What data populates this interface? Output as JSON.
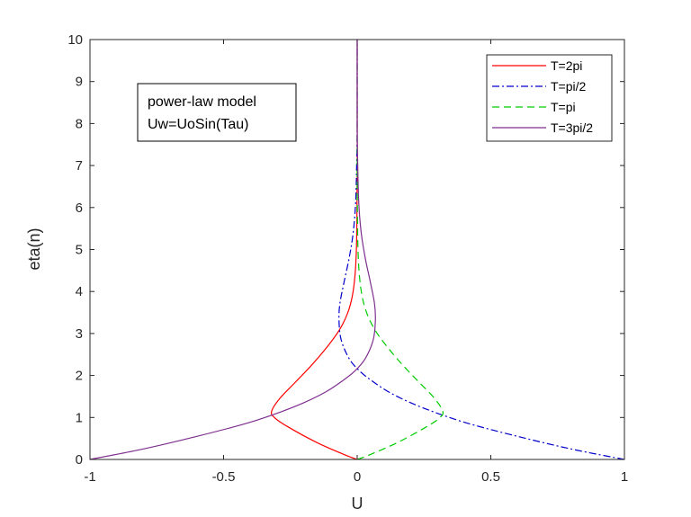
{
  "chart_data": {
    "type": "line",
    "xlabel": "U",
    "ylabel": "eta(n)",
    "xlim": [
      -1,
      1
    ],
    "ylim": [
      0,
      10
    ],
    "x_ticks": [
      "-1",
      "-0.5",
      "0",
      "0.5",
      "1"
    ],
    "y_ticks": [
      "0",
      "1",
      "2",
      "3",
      "4",
      "5",
      "6",
      "7",
      "8",
      "9",
      "10"
    ],
    "annotation": [
      "power-law model",
      "Uw=UoSin(Tau)"
    ],
    "legend_position": "top-right",
    "series": [
      {
        "name": "T=2pi",
        "color": "#ff0000",
        "dash": "solid",
        "x": [
          0,
          -0.05,
          -0.15,
          -0.26,
          -0.31,
          -0.32,
          -0.29,
          -0.23,
          -0.17,
          -0.11,
          -0.065,
          -0.035,
          -0.018,
          -0.008,
          -0.003,
          -0.001,
          0,
          0
        ],
        "y": [
          0,
          0.12,
          0.4,
          0.78,
          1.0,
          1.15,
          1.45,
          1.85,
          2.25,
          2.7,
          3.1,
          3.5,
          3.9,
          4.4,
          5.0,
          5.8,
          7.0,
          10
        ]
      },
      {
        "name": "T=pi/2",
        "color": "#0000cc",
        "dash": "dashdot",
        "x": [
          1,
          0.8,
          0.6,
          0.42,
          0.3,
          0.2,
          0.12,
          0.06,
          0.01,
          -0.03,
          -0.06,
          -0.068,
          -0.065,
          -0.05,
          -0.03,
          -0.015,
          -0.006,
          -0.002,
          0,
          0
        ],
        "y": [
          0,
          0.25,
          0.55,
          0.85,
          1.1,
          1.35,
          1.6,
          1.85,
          2.1,
          2.4,
          2.85,
          3.3,
          3.7,
          4.2,
          4.8,
          5.4,
          6.1,
          7.0,
          8.0,
          10
        ]
      },
      {
        "name": "T=pi",
        "color": "#00cc00",
        "dash": "dashed",
        "x": [
          0,
          0.05,
          0.15,
          0.26,
          0.31,
          0.32,
          0.29,
          0.23,
          0.17,
          0.11,
          0.065,
          0.035,
          0.018,
          0.008,
          0.003,
          0.001,
          0,
          0
        ],
        "y": [
          0,
          0.12,
          0.4,
          0.78,
          1.0,
          1.15,
          1.45,
          1.85,
          2.25,
          2.7,
          3.1,
          3.5,
          3.9,
          4.4,
          5.0,
          5.8,
          7.0,
          10
        ]
      },
      {
        "name": "T=3pi/2",
        "color": "#7e2f8e",
        "dash": "solid",
        "x": [
          -1,
          -0.8,
          -0.6,
          -0.42,
          -0.3,
          -0.2,
          -0.12,
          -0.06,
          -0.01,
          0.03,
          0.06,
          0.068,
          0.065,
          0.05,
          0.03,
          0.015,
          0.006,
          0.002,
          0,
          0
        ],
        "y": [
          0,
          0.25,
          0.55,
          0.85,
          1.1,
          1.35,
          1.6,
          1.85,
          2.1,
          2.4,
          2.85,
          3.3,
          3.7,
          4.2,
          4.8,
          5.4,
          6.1,
          7.0,
          8.0,
          10
        ]
      }
    ]
  }
}
